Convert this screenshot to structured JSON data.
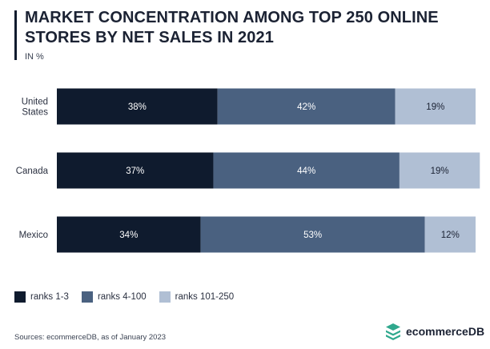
{
  "header": {
    "title": "MARKET CONCENTRATION AMONG TOP 250 ONLINE STORES BY NET SALES IN 2021",
    "subtitle": "IN %"
  },
  "footer": {
    "source": "Sources: ecommerceDB, as of January 2023",
    "logo_text": "ecommerceDB"
  },
  "colors": {
    "ranks_1_3": "#0f1b2e",
    "ranks_4_100": "#4a6180",
    "ranks_101_250": "#b0bfd4",
    "logo_green": "#2fa88d"
  },
  "chart_data": {
    "type": "bar",
    "orientation": "horizontal",
    "stacked": true,
    "categories": [
      [
        "United",
        "States"
      ],
      [
        "Canada"
      ],
      [
        "Mexico"
      ]
    ],
    "series": [
      {
        "name": "ranks 1-3",
        "values": [
          38,
          37,
          34
        ],
        "labels": [
          "38%",
          "37%",
          "34%"
        ]
      },
      {
        "name": "ranks 4-100",
        "values": [
          42,
          44,
          53
        ],
        "labels": [
          "42%",
          "44%",
          "53%"
        ]
      },
      {
        "name": "ranks 101-250",
        "values": [
          19,
          19,
          12
        ],
        "labels": [
          "19%",
          "19%",
          "12%"
        ]
      }
    ],
    "xlim": [
      0,
      99
    ],
    "legend_position": "bottom-left",
    "grid": false
  }
}
